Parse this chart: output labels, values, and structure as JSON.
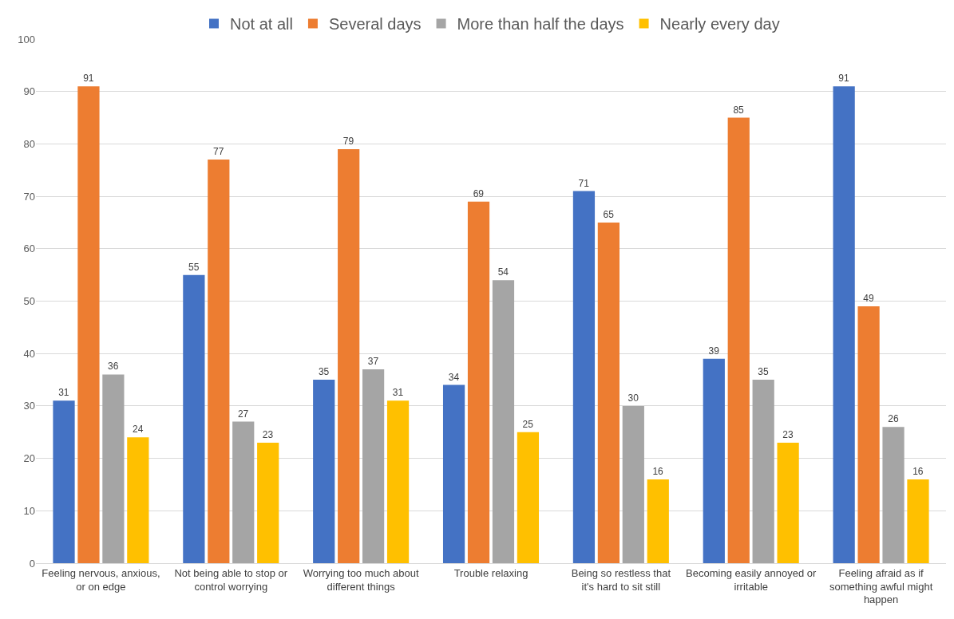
{
  "chart_data": {
    "type": "bar",
    "categories": [
      "Feeling nervous, anxious, or on edge",
      "Not being able to stop or control worrying",
      "Worrying too much about different things",
      "Trouble relaxing",
      "Being so restless that it's hard to sit still",
      "Becoming easily annoyed or irritable",
      "Feeling afraid as if something awful might happen"
    ],
    "series": [
      {
        "name": "Not at all",
        "color": "#4472c4",
        "values": [
          31,
          55,
          35,
          34,
          71,
          39,
          91
        ]
      },
      {
        "name": "Several days",
        "color": "#ed7d31",
        "values": [
          91,
          77,
          79,
          69,
          65,
          85,
          49
        ]
      },
      {
        "name": "More than half the days",
        "color": "#a5a5a5",
        "values": [
          36,
          27,
          37,
          54,
          30,
          35,
          26
        ]
      },
      {
        "name": "Nearly every day",
        "color": "#ffc000",
        "values": [
          24,
          23,
          31,
          25,
          16,
          23,
          16
        ]
      }
    ],
    "ylim": [
      0,
      100
    ],
    "yticks": [
      0,
      10,
      20,
      30,
      40,
      50,
      60,
      70,
      80,
      90,
      100
    ],
    "grid": "y",
    "legend": "top",
    "data_labels": true
  }
}
